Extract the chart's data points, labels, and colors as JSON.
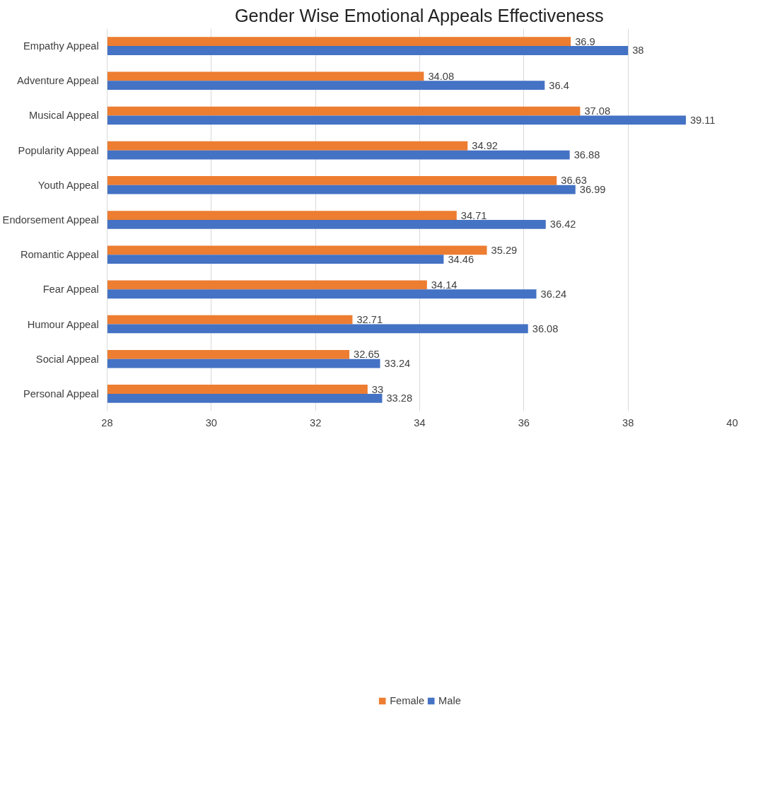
{
  "chart_data": {
    "type": "bar",
    "orientation": "horizontal",
    "title": "Gender Wise Emotional Appeals Effectiveness",
    "categories": [
      "Empathy Appeal",
      "Adventure Appeal",
      "Musical Appeal",
      "Popularity Appeal",
      "Youth Appeal",
      "Endorsement Appeal",
      "Romantic Appeal",
      "Fear Appeal",
      "Humour Appeal",
      "Social Appeal",
      "Personal Appeal"
    ],
    "series": [
      {
        "name": "Female",
        "color": "#ed7d31",
        "values": [
          36.9,
          34.08,
          37.08,
          34.92,
          36.63,
          34.71,
          35.29,
          34.14,
          32.71,
          32.65,
          33
        ]
      },
      {
        "name": "Male",
        "color": "#4472c4",
        "values": [
          38,
          36.4,
          39.11,
          36.88,
          36.99,
          36.42,
          34.46,
          36.24,
          36.08,
          33.24,
          33.28
        ]
      }
    ],
    "xlim": [
      28,
      40
    ],
    "xticks": [
      28,
      30,
      32,
      34,
      36,
      38,
      40
    ],
    "grid": "x",
    "legend": "bottom",
    "data_labels": true
  }
}
